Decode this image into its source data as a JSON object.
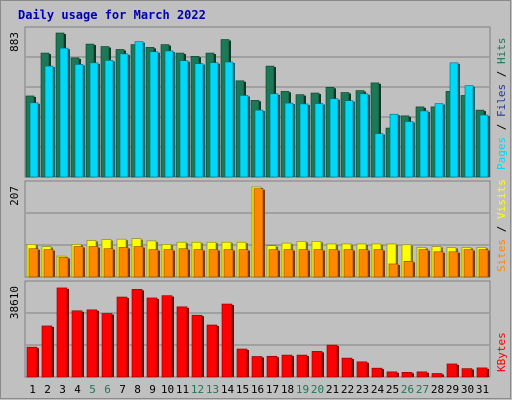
{
  "chart_data": {
    "type": "bar",
    "title": "Daily usage for March 2022",
    "categories": [
      "1",
      "2",
      "3",
      "4",
      "5",
      "6",
      "7",
      "8",
      "9",
      "10",
      "11",
      "12",
      "13",
      "14",
      "15",
      "16",
      "17",
      "18",
      "19",
      "20",
      "21",
      "22",
      "23",
      "24",
      "25",
      "26",
      "27",
      "28",
      "29",
      "30",
      "31"
    ],
    "weekend_days": [
      "5",
      "6",
      "12",
      "13",
      "19",
      "20",
      "26",
      "27"
    ],
    "panels": [
      {
        "id": "traffic",
        "max_label": "883",
        "ymax": 883,
        "series": [
          {
            "name": "Hits",
            "color": "#1c7856",
            "values": [
              497,
              760,
              883,
              730,
              815,
              800,
              782,
              812,
              795,
              812,
              760,
              740,
              760,
              843,
              590,
              470,
              680,
              525,
              505,
              515,
              550,
              518,
              530,
              577,
              300,
              375,
              430,
              430,
              525,
              500,
              410
            ]
          },
          {
            "name": "Files",
            "color": "#1f3a99",
            "values": [
              0,
              0,
              0,
              0,
              0,
              0,
              0,
              0,
              0,
              0,
              0,
              0,
              0,
              0,
              0,
              0,
              0,
              0,
              0,
              0,
              0,
              0,
              0,
              0,
              0,
              0,
              0,
              0,
              0,
              0,
              0
            ]
          },
          {
            "name": "Pages",
            "color": "#00d8f8",
            "values": [
              455,
              680,
              790,
              690,
              700,
              715,
              755,
              830,
              768,
              773,
              713,
              695,
              701,
              705,
              500,
              410,
              510,
              453,
              448,
              450,
              480,
              468,
              510,
              266,
              385,
              340,
              405,
              450,
              700,
              560,
              380
            ]
          }
        ],
        "legend": [
          "Pages",
          "Files",
          "Hits"
        ]
      },
      {
        "id": "visitors",
        "max_label": "207",
        "ymax": 207,
        "series": [
          {
            "name": "Visits",
            "color": "#ffff00",
            "values": [
              75,
              70,
              48,
              75,
              84,
              86,
              87,
              88,
              83,
              75,
              80,
              80,
              80,
              80,
              80,
              207,
              72,
              78,
              82,
              82,
              76,
              76,
              76,
              76,
              76,
              74,
              68,
              70,
              68,
              68,
              68
            ]
          },
          {
            "name": "Sites",
            "color": "#ff8800",
            "values": [
              65,
              63,
              45,
              70,
              70,
              65,
              68,
              70,
              63,
              63,
              65,
              63,
              63,
              63,
              63,
              203,
              63,
              63,
              63,
              63,
              63,
              63,
              63,
              63,
              30,
              36,
              63,
              58,
              58,
              63,
              63
            ]
          }
        ],
        "legend": [
          "Sites",
          "Visits"
        ]
      },
      {
        "id": "kbytes",
        "max_label": "38610",
        "ymax": 38610,
        "series": [
          {
            "name": "KBytes",
            "color": "#ff0000",
            "values": [
              12800,
              21900,
              38200,
              28400,
              28800,
              27200,
              34300,
              37600,
              33900,
              34900,
              30100,
              26500,
              22300,
              31300,
              12000,
              8800,
              8900,
              9400,
              9400,
              11000,
              13700,
              8100,
              6500,
              3800,
              2200,
              2000,
              2200,
              1500,
              5600,
              3600,
              3900
            ]
          }
        ],
        "legend": [
          "KBytes"
        ]
      }
    ]
  }
}
